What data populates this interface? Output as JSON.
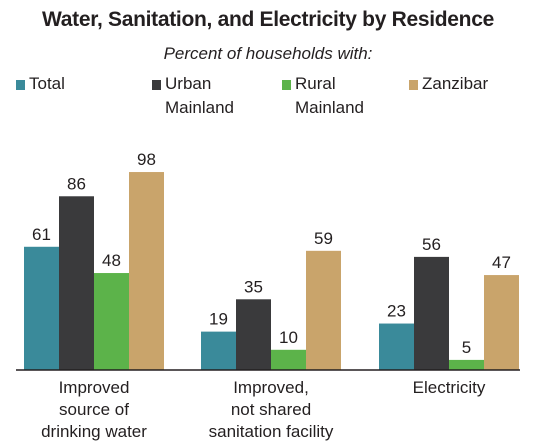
{
  "chart_data": {
    "type": "bar",
    "title": "Water, Sanitation, and Electricity by Residence",
    "subtitle": "Percent of households with:",
    "categories": [
      [
        "Improved",
        "source of",
        "drinking water"
      ],
      [
        "Improved,",
        "not shared",
        "sanitation facility"
      ],
      [
        "Electricity"
      ]
    ],
    "series": [
      {
        "name": "Total",
        "color": "#3a8a9a",
        "values": [
          61,
          19,
          23
        ]
      },
      {
        "name": "Urban\nMainland",
        "color": "#3a3a3c",
        "values": [
          86,
          35,
          56
        ]
      },
      {
        "name": "Rural\nMainland",
        "color": "#5cb34a",
        "values": [
          48,
          10,
          5
        ]
      },
      {
        "name": "Zanzibar",
        "color": "#c9a46b",
        "values": [
          98,
          59,
          47
        ]
      }
    ],
    "ylim": [
      0,
      100
    ],
    "legend_position": "top",
    "grid": false
  }
}
